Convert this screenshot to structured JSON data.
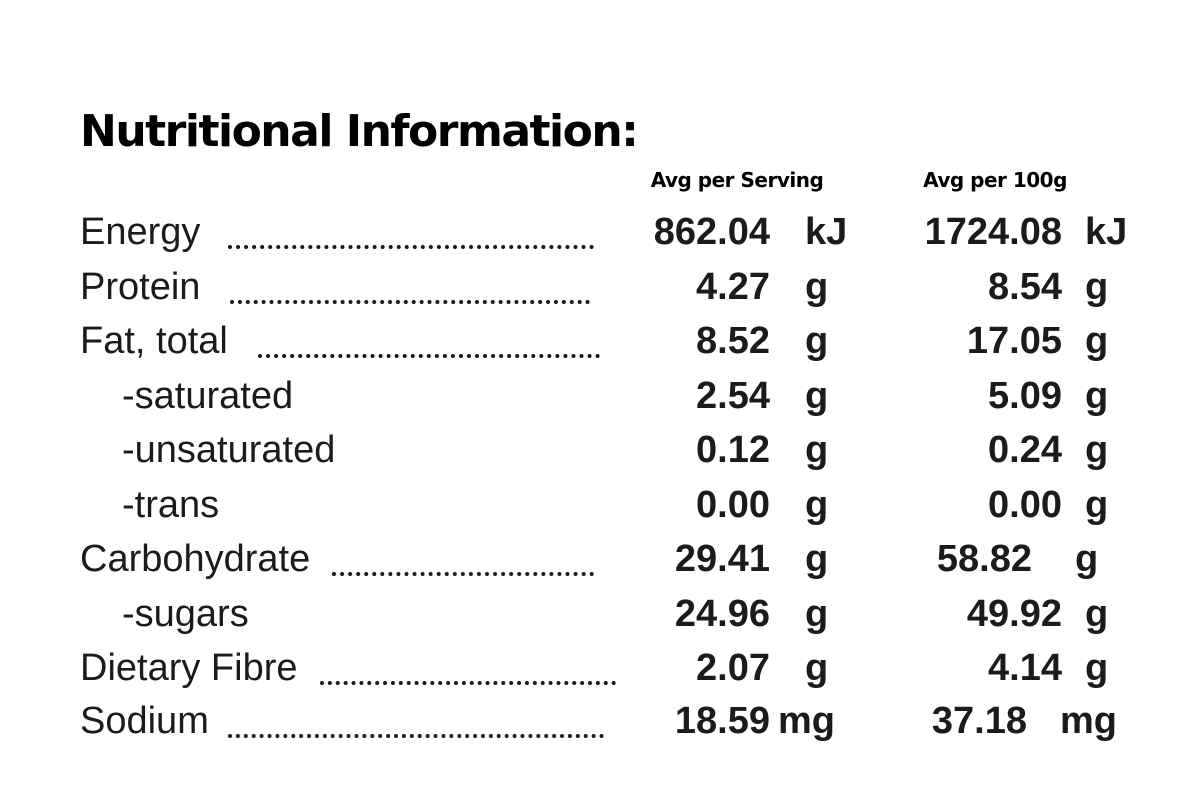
{
  "title": "Nutritional Information:",
  "columns": {
    "per_serving": "Avg per Serving",
    "per_100g": "Avg per 100g"
  },
  "rows": [
    {
      "label": "Energy",
      "serving": "862.04",
      "serving_unit": "kJ",
      "per100": "1724.08",
      "per100_unit": "kJ"
    },
    {
      "label": "Protein",
      "serving": "4.27",
      "serving_unit": "g",
      "per100": "8.54",
      "per100_unit": "g"
    },
    {
      "label": "Fat, total",
      "serving": "8.52",
      "serving_unit": "g",
      "per100": "17.05",
      "per100_unit": "g"
    },
    {
      "label": "-saturated",
      "serving": "2.54",
      "serving_unit": "g",
      "per100": "5.09",
      "per100_unit": "g"
    },
    {
      "label": "-unsaturated",
      "serving": "0.12",
      "serving_unit": "g",
      "per100": "0.24",
      "per100_unit": "g"
    },
    {
      "label": "-trans",
      "serving": "0.00",
      "serving_unit": "g",
      "per100": "0.00",
      "per100_unit": "g"
    },
    {
      "label": "Carbohydrate",
      "serving": "29.41",
      "serving_unit": "g",
      "per100": "58.82",
      "per100_unit": "g"
    },
    {
      "label": "-sugars",
      "serving": "24.96",
      "serving_unit": "g",
      "per100": "49.92",
      "per100_unit": "g"
    },
    {
      "label": "Dietary Fibre",
      "serving": "2.07",
      "serving_unit": "g",
      "per100": "4.14",
      "per100_unit": "g"
    },
    {
      "label": "Sodium",
      "serving": "18.59",
      "serving_unit": "mg",
      "per100": "37.18",
      "per100_unit": "mg"
    }
  ]
}
